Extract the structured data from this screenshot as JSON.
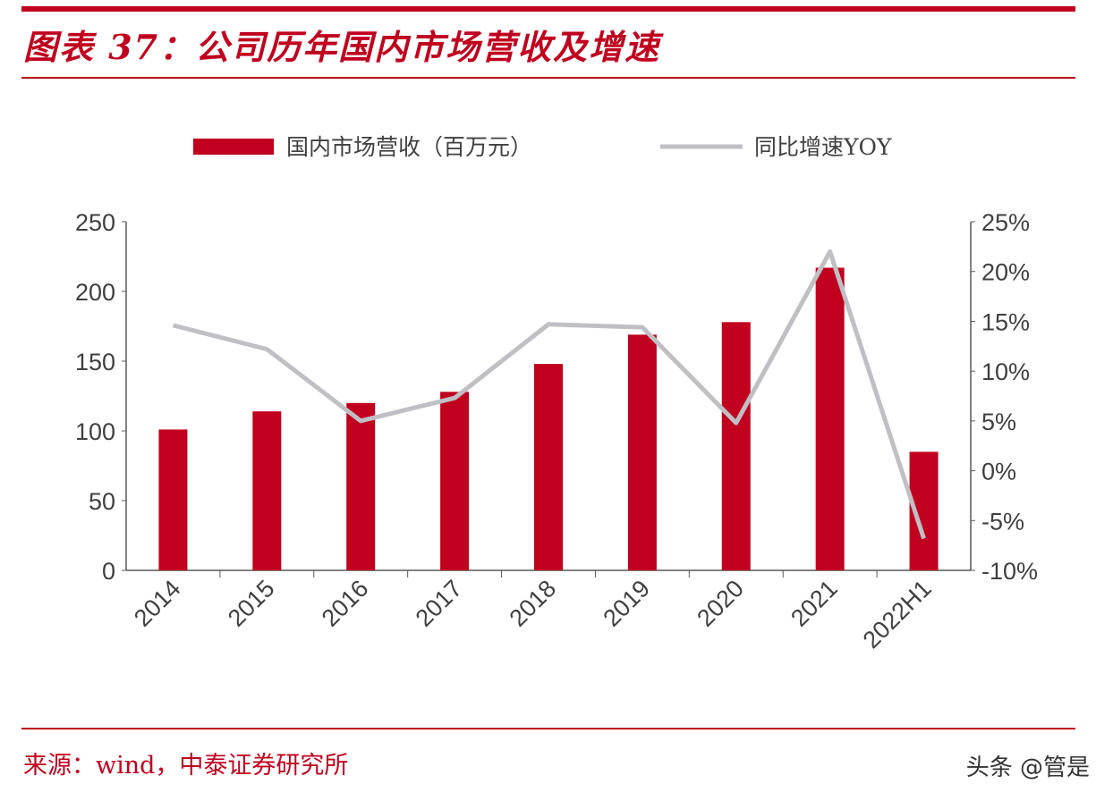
{
  "title": "图表 37：公司历年国内市场营收及增速",
  "source": "来源：wind，中泰证券研究所",
  "watermark": "头条 @管是",
  "colors": {
    "bar": "#c0001e",
    "line": "#bfbfc4",
    "accent": "#c0001e"
  },
  "chart_data": {
    "type": "bar+line",
    "categories": [
      "2014",
      "2015",
      "2016",
      "2017",
      "2018",
      "2019",
      "2020",
      "2021",
      "2022H1"
    ],
    "series": [
      {
        "name": "国内市场营收（百万元）",
        "type": "bar",
        "axis": "left",
        "values": [
          101,
          114,
          120,
          128,
          148,
          169,
          178,
          217,
          85
        ]
      },
      {
        "name": "同比增速YOY",
        "type": "line",
        "axis": "right",
        "values": [
          14.6,
          12.2,
          5.0,
          7.3,
          14.7,
          14.4,
          4.8,
          22.0,
          -6.8
        ]
      }
    ],
    "left_axis": {
      "ylim": [
        0,
        250
      ],
      "ticks": [
        "0",
        "50",
        "100",
        "150",
        "200",
        "250"
      ]
    },
    "right_axis": {
      "ylim": [
        -10,
        25
      ],
      "ticks": [
        "-10%",
        "-5%",
        "0%",
        "5%",
        "10%",
        "15%",
        "20%",
        "25%"
      ]
    },
    "legend_position": "top",
    "grid": false
  }
}
